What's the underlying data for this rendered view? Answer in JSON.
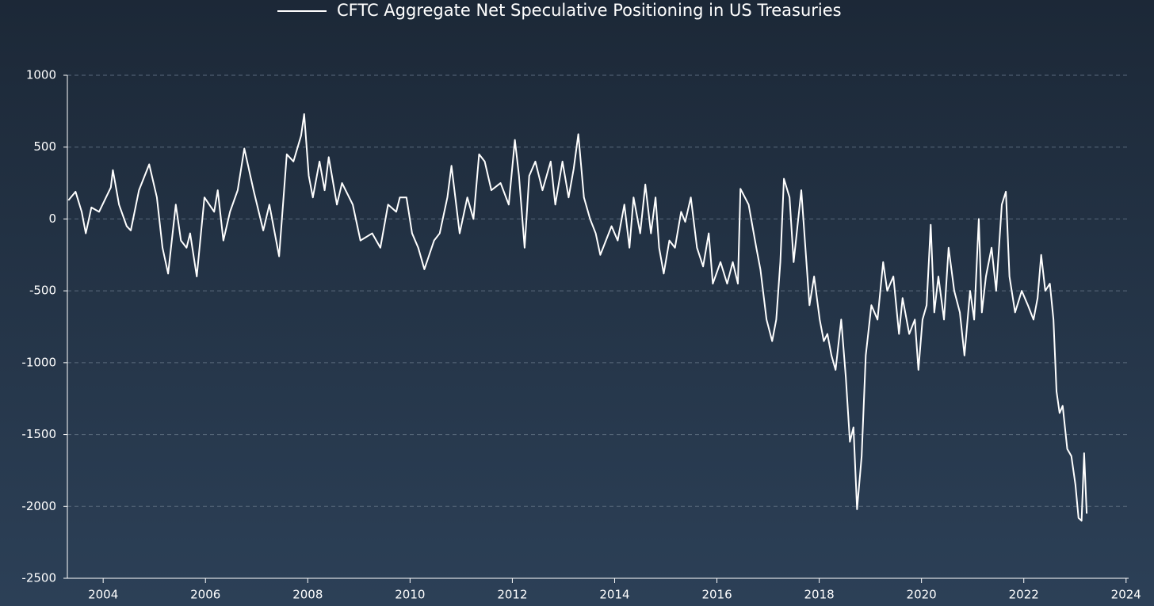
{
  "chart_data": {
    "type": "line",
    "x": [
      2003.32,
      2003.46,
      2003.58,
      2003.66,
      2003.77,
      2003.92,
      2004.15,
      2004.19,
      2004.31,
      2004.46,
      2004.54,
      2004.7,
      2004.9,
      2005.05,
      2005.16,
      2005.27,
      2005.42,
      2005.52,
      2005.63,
      2005.7,
      2005.83,
      2005.98,
      2006.17,
      2006.24,
      2006.35,
      2006.48,
      2006.63,
      2006.76,
      2006.94,
      2007.13,
      2007.25,
      2007.44,
      2007.59,
      2007.72,
      2007.87,
      2007.93,
      2008.02,
      2008.1,
      2008.23,
      2008.33,
      2008.41,
      2008.57,
      2008.67,
      2008.88,
      2009.03,
      2009.26,
      2009.42,
      2009.57,
      2009.73,
      2009.8,
      2009.93,
      2010.04,
      2010.16,
      2010.28,
      2010.47,
      2010.58,
      2010.73,
      2010.81,
      2010.97,
      2011.12,
      2011.24,
      2011.35,
      2011.46,
      2011.59,
      2011.77,
      2011.93,
      2012.05,
      2012.13,
      2012.24,
      2012.33,
      2012.45,
      2012.59,
      2012.75,
      2012.84,
      2012.98,
      2013.1,
      2013.2,
      2013.29,
      2013.4,
      2013.52,
      2013.63,
      2013.72,
      2013.83,
      2013.94,
      2014.06,
      2014.19,
      2014.29,
      2014.37,
      2014.5,
      2014.6,
      2014.71,
      2014.8,
      2014.87,
      2014.96,
      2015.07,
      2015.18,
      2015.3,
      2015.38,
      2015.49,
      2015.61,
      2015.73,
      2015.84,
      2015.92,
      2016.07,
      2016.2,
      2016.31,
      2016.41,
      2016.46,
      2016.62,
      2016.77,
      2016.85,
      2016.97,
      2017.08,
      2017.16,
      2017.24,
      2017.31,
      2017.42,
      2017.5,
      2017.59,
      2017.65,
      2017.75,
      2017.81,
      2017.9,
      2018.01,
      2018.09,
      2018.16,
      2018.24,
      2018.32,
      2018.43,
      2018.52,
      2018.6,
      2018.67,
      2018.74,
      2018.83,
      2018.91,
      2019.02,
      2019.14,
      2019.25,
      2019.33,
      2019.45,
      2019.56,
      2019.63,
      2019.76,
      2019.87,
      2019.94,
      2020.02,
      2020.1,
      2020.18,
      2020.25,
      2020.33,
      2020.44,
      2020.53,
      2020.64,
      2020.75,
      2020.84,
      2020.95,
      2021.03,
      2021.12,
      2021.18,
      2021.26,
      2021.37,
      2021.46,
      2021.57,
      2021.65,
      2021.72,
      2021.83,
      2021.96,
      2022.08,
      2022.19,
      2022.27,
      2022.34,
      2022.42,
      2022.51,
      2022.58,
      2022.64,
      2022.7,
      2022.76,
      2022.85,
      2022.93,
      2023.01,
      2023.07,
      2023.13,
      2023.18,
      2023.23
    ],
    "series": [
      {
        "name": "CFTC Aggregate Net Speculative Positioning in US Treasuries",
        "color": "#ffffff",
        "values": [
          130,
          190,
          50,
          -100,
          80,
          50,
          220,
          340,
          100,
          -50,
          -80,
          200,
          380,
          150,
          -200,
          -380,
          100,
          -150,
          -200,
          -100,
          -400,
          150,
          50,
          200,
          -150,
          50,
          200,
          490,
          200,
          -80,
          100,
          -260,
          450,
          400,
          580,
          730,
          300,
          150,
          400,
          200,
          430,
          100,
          250,
          100,
          -150,
          -100,
          -200,
          100,
          50,
          150,
          150,
          -100,
          -200,
          -350,
          -150,
          -100,
          150,
          370,
          -100,
          150,
          0,
          450,
          400,
          200,
          250,
          100,
          550,
          300,
          -200,
          300,
          400,
          200,
          400,
          100,
          400,
          150,
          350,
          590,
          150,
          0,
          -100,
          -250,
          -150,
          -50,
          -150,
          100,
          -200,
          150,
          -100,
          240,
          -100,
          150,
          -200,
          -380,
          -150,
          -200,
          50,
          -20,
          150,
          -200,
          -330,
          -100,
          -450,
          -300,
          -450,
          -300,
          -450,
          210,
          100,
          -200,
          -350,
          -700,
          -850,
          -700,
          -300,
          280,
          150,
          -300,
          0,
          200,
          -300,
          -600,
          -400,
          -700,
          -850,
          -800,
          -950,
          -1050,
          -700,
          -1100,
          -1550,
          -1450,
          -2020,
          -1650,
          -950,
          -600,
          -700,
          -300,
          -500,
          -400,
          -800,
          -550,
          -800,
          -700,
          -1050,
          -700,
          -600,
          -40,
          -650,
          -400,
          -700,
          -200,
          -500,
          -650,
          -950,
          -500,
          -700,
          0,
          -650,
          -400,
          -200,
          -500,
          100,
          190,
          -400,
          -650,
          -500,
          -600,
          -700,
          -550,
          -250,
          -500,
          -450,
          -700,
          -1200,
          -1350,
          -1300,
          -1600,
          -1650,
          -1850,
          -2080,
          -2100,
          -1630,
          -2050
        ]
      }
    ],
    "xlim": [
      2003.3,
      2024.05
    ],
    "xticks": [
      2004,
      2006,
      2008,
      2010,
      2012,
      2014,
      2016,
      2018,
      2020,
      2022,
      2024
    ],
    "ylim": [
      -2500,
      1000
    ],
    "yticks": [
      -2500,
      -2000,
      -1500,
      -1000,
      -500,
      0,
      500,
      1000
    ],
    "grid": true
  }
}
